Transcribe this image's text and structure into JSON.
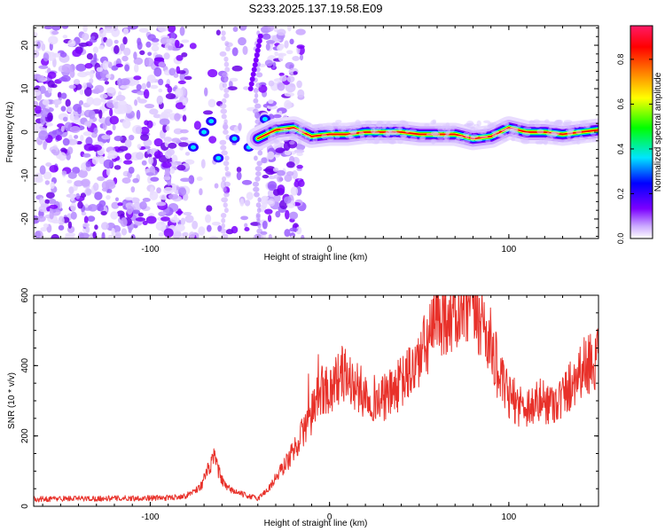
{
  "title": "S233.2025.137.19.58.E09",
  "chart_data": [
    {
      "type": "heatmap",
      "xlabel": "Height of straight line (km)",
      "ylabel": "Frequency (Hz)",
      "xlim": [
        -165,
        150
      ],
      "ylim": [
        -24.5,
        24.5
      ],
      "xticks": [
        -100,
        0,
        100
      ],
      "yticks": [
        -20,
        -10,
        0,
        10,
        20
      ],
      "colorbar": {
        "label": "Normalized spectral amplitude",
        "range": [
          0,
          0.95
        ],
        "ticks": [
          "0.0",
          "0.2",
          "0.4",
          "0.6",
          "0.8"
        ],
        "colors": [
          "#ffffff",
          "#7c00ff",
          "#0000ff",
          "#00e5ff",
          "#00ff00",
          "#ffff00",
          "#ff8000",
          "#ff0000",
          "#ff1a66"
        ]
      },
      "ridge": {
        "x": [
          -40,
          -30,
          -20,
          -10,
          0,
          10,
          20,
          30,
          40,
          50,
          60,
          70,
          80,
          90,
          100,
          110,
          120,
          130,
          140,
          150
        ],
        "y": [
          -1.5,
          0.5,
          1,
          -1,
          -0.5,
          -0.5,
          0,
          0,
          0,
          -0.5,
          -0.5,
          -0.5,
          -1.5,
          -1,
          1,
          0,
          0,
          -0.5,
          0,
          0.5
        ]
      }
    },
    {
      "type": "line",
      "xlabel": "Height of straight line (km)",
      "ylabel": "SNR (10 * v/v)",
      "xlim": [
        -165,
        150
      ],
      "ylim": [
        0,
        600
      ],
      "xticks": [
        -100,
        0,
        100
      ],
      "yticks": [
        0,
        200,
        400,
        600
      ],
      "color": "#e8312a",
      "series": [
        {
          "x": [
            -165,
            -150,
            -130,
            -110,
            -90,
            -80,
            -72,
            -68,
            -64,
            -61,
            -58,
            -52,
            -46,
            -40,
            -34,
            -28,
            -22,
            -16,
            -10,
            -6,
            -3,
            0,
            4,
            8,
            14,
            20,
            28,
            34,
            40,
            48,
            55,
            60,
            65,
            70,
            75,
            80,
            85,
            90,
            96,
            100,
            106,
            112,
            118,
            124,
            130,
            136,
            140,
            145,
            150
          ],
          "y": [
            20,
            22,
            22,
            23,
            24,
            30,
            55,
            100,
            140,
            85,
            55,
            40,
            30,
            22,
            50,
            95,
            140,
            200,
            260,
            320,
            340,
            330,
            360,
            380,
            340,
            320,
            300,
            320,
            350,
            400,
            470,
            530,
            550,
            540,
            550,
            560,
            530,
            460,
            350,
            310,
            290,
            285,
            300,
            295,
            310,
            360,
            390,
            410,
            420
          ]
        }
      ]
    }
  ]
}
